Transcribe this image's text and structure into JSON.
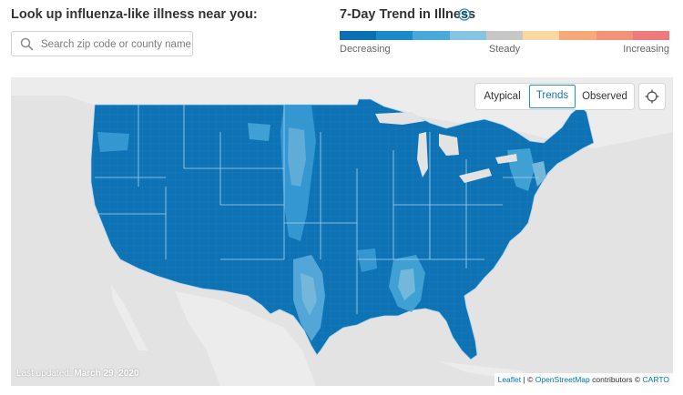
{
  "lookup": {
    "title": "Look up influenza-like illness near you:",
    "search_placeholder": "Search zip code or county name",
    "search_value": ""
  },
  "trend": {
    "title": "7-Day Trend in Illness",
    "help_icon": "question-circle-icon",
    "legend_colors": [
      "#0a6fb3",
      "#1a8ac8",
      "#49a9d9",
      "#86c4e1",
      "#c7c7c7",
      "#f9d9a0",
      "#f6a97a",
      "#f29379",
      "#ee7b7b"
    ],
    "labels": {
      "left": "Decreasing",
      "middle": "Steady",
      "right": "Increasing"
    }
  },
  "map": {
    "toggles": [
      {
        "label": "Atypical",
        "active": false
      },
      {
        "label": "Trends",
        "active": true
      },
      {
        "label": "Observed",
        "active": false
      }
    ],
    "locate_icon": "crosshair-icon",
    "last_updated_label": "Last updated:",
    "last_updated_date": "March 29, 2020",
    "attribution": {
      "leaflet": "Leaflet",
      "separator": "|",
      "copyright": "©",
      "osm": "OpenStreetMap",
      "contributors": "contributors ©",
      "carto": "CARTO"
    },
    "colors": {
      "water": "#e3e3e3",
      "land": "#ececec",
      "dominant": "#0e73b5",
      "state_border": "#a9d4ef"
    }
  }
}
